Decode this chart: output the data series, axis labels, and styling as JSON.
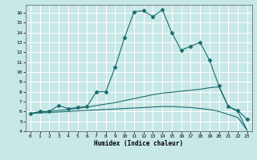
{
  "xlabel": "Humidex (Indice chaleur)",
  "bg_color": "#c8e8e8",
  "line_color": "#1a6b6b",
  "grid_color": "#ffffff",
  "xlim": [
    -0.5,
    23.5
  ],
  "ylim": [
    4,
    16.8
  ],
  "yticks": [
    4,
    5,
    6,
    7,
    8,
    9,
    10,
    11,
    12,
    13,
    14,
    15,
    16
  ],
  "xticks": [
    0,
    1,
    2,
    3,
    4,
    5,
    6,
    7,
    8,
    9,
    10,
    11,
    12,
    13,
    14,
    15,
    16,
    17,
    18,
    19,
    20,
    21,
    22,
    23
  ],
  "series": [
    {
      "x": [
        0,
        1,
        2,
        3,
        4,
        5,
        6,
        7,
        8,
        9,
        10,
        11,
        12,
        13,
        14,
        15,
        16,
        17,
        18,
        19,
        20,
        21,
        22,
        23
      ],
      "y": [
        5.8,
        6.0,
        6.0,
        6.6,
        6.3,
        6.4,
        6.5,
        8.0,
        8.0,
        10.5,
        13.5,
        16.1,
        16.2,
        15.6,
        16.3,
        14.0,
        12.2,
        12.6,
        13.0,
        11.2,
        8.6,
        6.5,
        6.1,
        5.2
      ],
      "marker": "D",
      "markersize": 2.5
    },
    {
      "x": [
        0,
        1,
        2,
        3,
        4,
        5,
        6,
        7,
        8,
        9,
        10,
        11,
        12,
        13,
        14,
        15,
        16,
        17,
        18,
        19,
        20,
        21,
        22,
        23
      ],
      "y": [
        5.8,
        5.9,
        6.0,
        6.1,
        6.2,
        6.3,
        6.45,
        6.6,
        6.75,
        6.9,
        7.1,
        7.3,
        7.5,
        7.7,
        7.85,
        7.95,
        8.05,
        8.15,
        8.25,
        8.4,
        8.5,
        6.5,
        6.0,
        4.1
      ],
      "marker": null,
      "markersize": 0
    },
    {
      "x": [
        0,
        1,
        2,
        3,
        4,
        5,
        6,
        7,
        8,
        9,
        10,
        11,
        12,
        13,
        14,
        15,
        16,
        17,
        18,
        19,
        20,
        21,
        22,
        23
      ],
      "y": [
        5.8,
        5.85,
        5.9,
        5.95,
        6.0,
        6.05,
        6.1,
        6.15,
        6.2,
        6.25,
        6.3,
        6.35,
        6.4,
        6.45,
        6.5,
        6.5,
        6.45,
        6.4,
        6.3,
        6.2,
        6.0,
        5.7,
        5.4,
        4.1
      ],
      "marker": null,
      "markersize": 0
    }
  ]
}
